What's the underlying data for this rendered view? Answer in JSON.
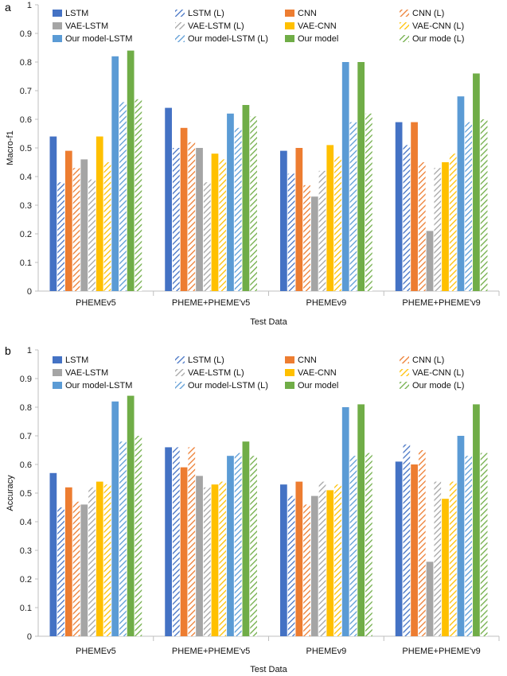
{
  "chart_data": [
    {
      "type": "bar",
      "panel_label": "a",
      "categories": [
        "PHEMEv5",
        "PHEME+PHEME'v5",
        "PHEMEv9",
        "PHEME+PHEME'v9"
      ],
      "xlabel": "Test Data",
      "ylabel": "Macro-f1",
      "ylim": [
        0,
        1
      ],
      "yticks": [
        0,
        0.1,
        0.2,
        0.3,
        0.4,
        0.5,
        0.6,
        0.7,
        0.8,
        0.9,
        1
      ],
      "grid": false,
      "legend": "top",
      "series": [
        {
          "name": "LSTM",
          "color": "#4472C4",
          "pattern": "solid",
          "values": [
            0.54,
            0.64,
            0.49,
            0.59
          ]
        },
        {
          "name": "LSTM (L)",
          "color": "#4472C4",
          "pattern": "hatch",
          "values": [
            0.38,
            0.5,
            0.41,
            0.51
          ]
        },
        {
          "name": "CNN",
          "color": "#ED7D31",
          "pattern": "solid",
          "values": [
            0.49,
            0.57,
            0.5,
            0.59
          ]
        },
        {
          "name": "CNN (L)",
          "color": "#ED7D31",
          "pattern": "hatch",
          "values": [
            0.43,
            0.52,
            0.37,
            0.45
          ]
        },
        {
          "name": "VAE-LSTM",
          "color": "#A5A5A5",
          "pattern": "solid",
          "values": [
            0.46,
            0.5,
            0.33,
            0.21
          ]
        },
        {
          "name": "VAE-LSTM (L)",
          "color": "#A5A5A5",
          "pattern": "hatch",
          "values": [
            0.39,
            0.38,
            0.42,
            0.43
          ]
        },
        {
          "name": "VAE-CNN",
          "color": "#FFC000",
          "pattern": "solid",
          "values": [
            0.54,
            0.48,
            0.51,
            0.45
          ]
        },
        {
          "name": "VAE-CNN (L)",
          "color": "#FFC000",
          "pattern": "hatch",
          "values": [
            0.45,
            0.46,
            0.47,
            0.48
          ]
        },
        {
          "name": "Our model-LSTM",
          "color": "#5B9BD5",
          "pattern": "solid",
          "values": [
            0.82,
            0.62,
            0.8,
            0.68
          ]
        },
        {
          "name": "Our model-LSTM (L)",
          "color": "#5B9BD5",
          "pattern": "hatch",
          "values": [
            0.66,
            0.57,
            0.59,
            0.59
          ]
        },
        {
          "name": "Our model",
          "color": "#70AD47",
          "pattern": "solid",
          "values": [
            0.84,
            0.65,
            0.8,
            0.76
          ]
        },
        {
          "name": "Our mode (L)",
          "color": "#70AD47",
          "pattern": "hatch",
          "values": [
            0.67,
            0.61,
            0.62,
            0.6
          ]
        }
      ]
    },
    {
      "type": "bar",
      "panel_label": "b",
      "categories": [
        "PHEMEv5",
        "PHEME+PHEME'v5",
        "PHEMEv9",
        "PHEME+PHEME'v9"
      ],
      "xlabel": "Test Data",
      "ylabel": "Accuracy",
      "ylim": [
        0,
        1
      ],
      "yticks": [
        0,
        0.1,
        0.2,
        0.3,
        0.4,
        0.5,
        0.6,
        0.7,
        0.8,
        0.9,
        1
      ],
      "grid": false,
      "legend": "top",
      "series": [
        {
          "name": "LSTM",
          "color": "#4472C4",
          "pattern": "solid",
          "values": [
            0.57,
            0.66,
            0.53,
            0.61
          ]
        },
        {
          "name": "LSTM (L)",
          "color": "#4472C4",
          "pattern": "hatch",
          "values": [
            0.45,
            0.66,
            0.49,
            0.67
          ]
        },
        {
          "name": "CNN",
          "color": "#ED7D31",
          "pattern": "solid",
          "values": [
            0.52,
            0.59,
            0.54,
            0.6
          ]
        },
        {
          "name": "CNN (L)",
          "color": "#ED7D31",
          "pattern": "hatch",
          "values": [
            0.47,
            0.66,
            0.46,
            0.65
          ]
        },
        {
          "name": "VAE-LSTM",
          "color": "#A5A5A5",
          "pattern": "solid",
          "values": [
            0.46,
            0.56,
            0.49,
            0.26
          ]
        },
        {
          "name": "VAE-LSTM (L)",
          "color": "#A5A5A5",
          "pattern": "hatch",
          "values": [
            0.52,
            0.52,
            0.54,
            0.54
          ]
        },
        {
          "name": "VAE-CNN",
          "color": "#FFC000",
          "pattern": "solid",
          "values": [
            0.54,
            0.53,
            0.51,
            0.48
          ]
        },
        {
          "name": "VAE-CNN (L)",
          "color": "#FFC000",
          "pattern": "hatch",
          "values": [
            0.53,
            0.54,
            0.53,
            0.54
          ]
        },
        {
          "name": "Our model-LSTM",
          "color": "#5B9BD5",
          "pattern": "solid",
          "values": [
            0.82,
            0.63,
            0.8,
            0.7
          ]
        },
        {
          "name": "Our model-LSTM (L)",
          "color": "#5B9BD5",
          "pattern": "hatch",
          "values": [
            0.68,
            0.64,
            0.63,
            0.63
          ]
        },
        {
          "name": "Our model",
          "color": "#70AD47",
          "pattern": "solid",
          "values": [
            0.84,
            0.68,
            0.81,
            0.81
          ]
        },
        {
          "name": "Our mode (L)",
          "color": "#70AD47",
          "pattern": "hatch",
          "values": [
            0.7,
            0.63,
            0.64,
            0.64
          ]
        }
      ]
    }
  ]
}
